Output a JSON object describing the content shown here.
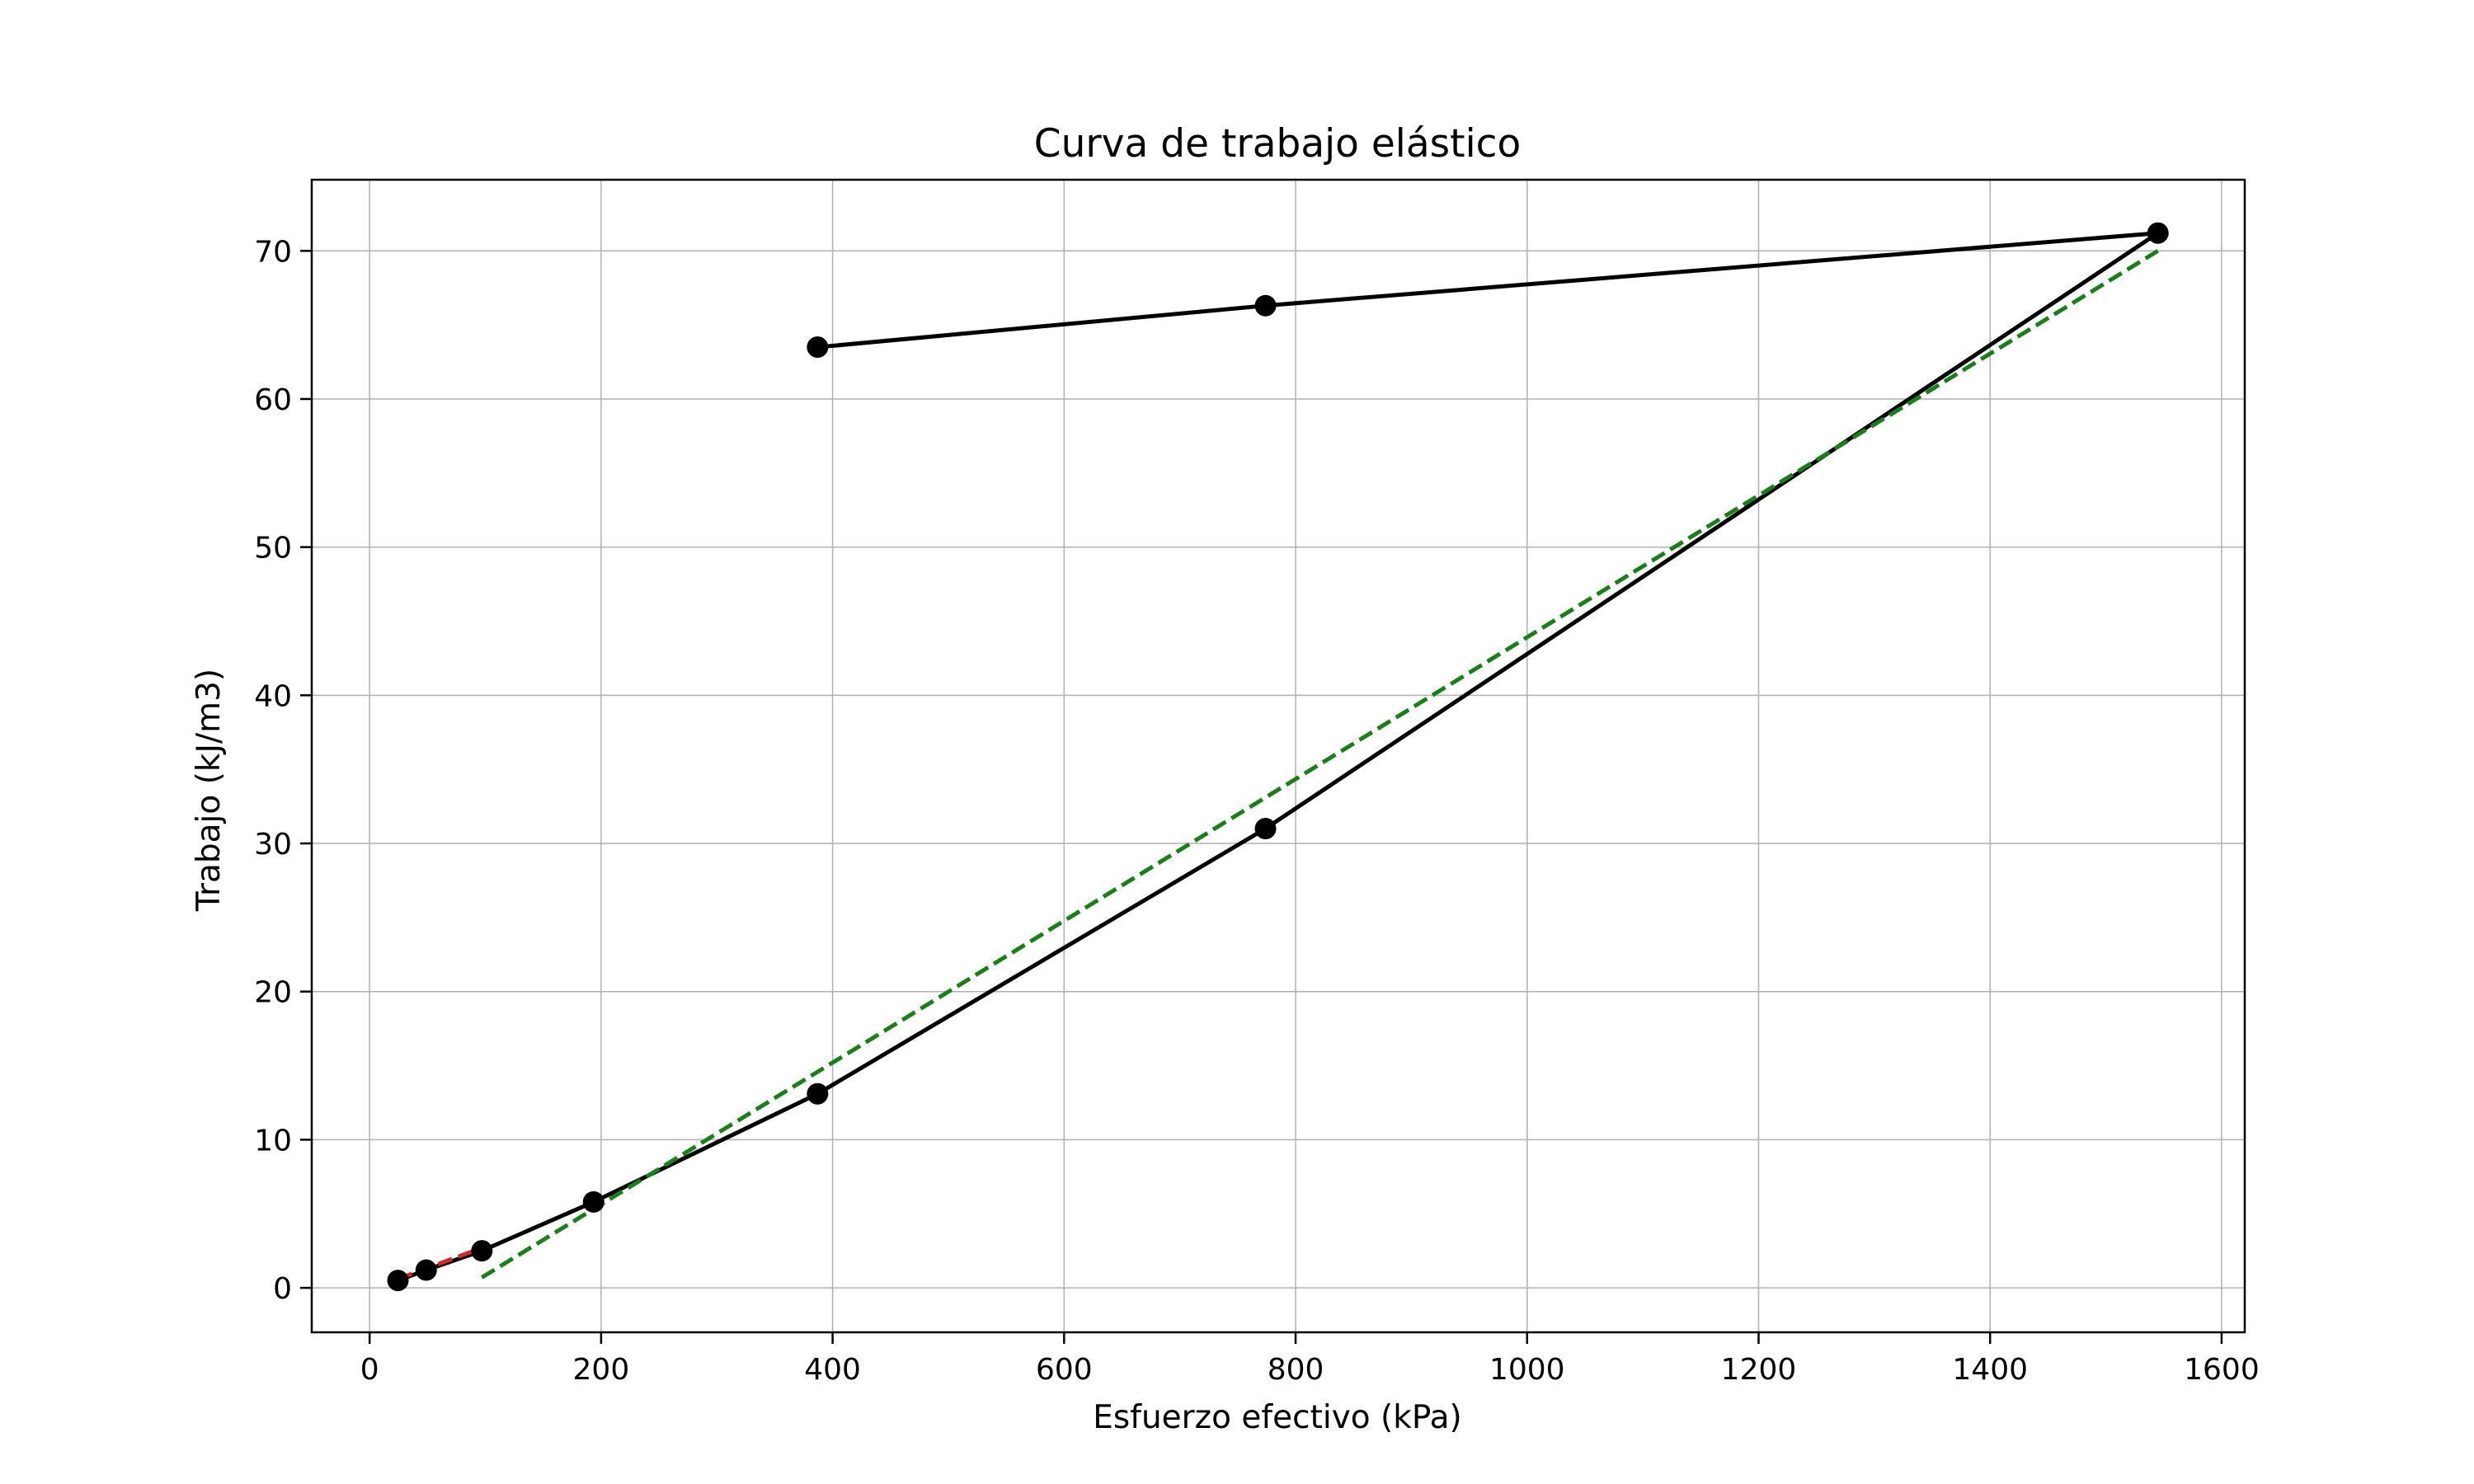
{
  "chart_data": {
    "type": "line",
    "title": "Curva de trabajo elástico",
    "xlabel": "Esfuerzo efectivo (kPa)",
    "ylabel": "Trabajo (kJ/m3)",
    "xlim": [
      -50,
      1620
    ],
    "ylim": [
      -3,
      74.8
    ],
    "x_ticks": [
      0,
      200,
      400,
      600,
      800,
      1000,
      1200,
      1400,
      1600
    ],
    "y_ticks": [
      0,
      10,
      20,
      30,
      40,
      50,
      60,
      70
    ],
    "grid": true,
    "series": [
      {
        "style": "solid-markers",
        "color": "#000000",
        "x": [
          24.5,
          48.9,
          97,
          193.5,
          387,
          774,
          1545,
          774,
          387
        ],
        "y": [
          0.5,
          1.2,
          2.5,
          5.8,
          13.1,
          31.0,
          71.2,
          66.3,
          63.5
        ]
      },
      {
        "style": "dashed",
        "color": "#d62728",
        "x": [
          24.5,
          97
        ],
        "y": [
          0.6,
          2.7
        ]
      },
      {
        "style": "dashed",
        "color": "#1a7f1a",
        "x": [
          97,
          1545
        ],
        "y": [
          0.7,
          70.0
        ]
      }
    ]
  }
}
